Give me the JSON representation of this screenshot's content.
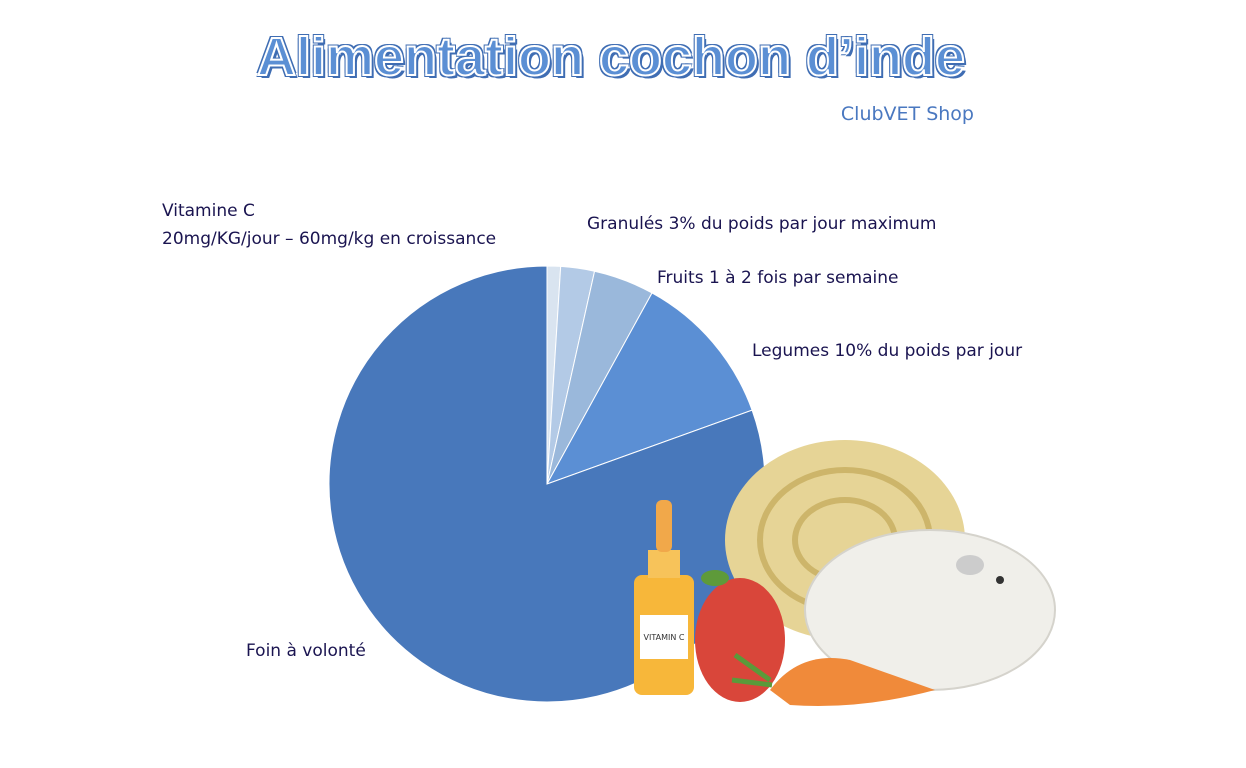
{
  "title": "Alimentation cochon d’inde",
  "subtitle": "ClubVET Shop",
  "chart_data": {
    "type": "pie",
    "start": "top",
    "direction": "clockwise",
    "slices": [
      {
        "label": "Vitamine C",
        "sublabel": "20mg/KG/jour – 60mg/kg en croissance",
        "value": 1,
        "color": "#d9e4f0"
      },
      {
        "label": "Granulés 3% du poids par jour maximum",
        "value": 2.5,
        "color": "#b3cae6"
      },
      {
        "label": "Fruits 1 à 2 fois par semaine",
        "value": 4.5,
        "color": "#9ab8db"
      },
      {
        "label": "Legumes 10% du poids par jour",
        "value": 11.5,
        "color": "#5b8fd4"
      },
      {
        "label": "Foin à volonté",
        "value": 80.5,
        "color": "#4878bb"
      }
    ]
  },
  "illustration": {
    "bottle_label": "VITAMIN C"
  }
}
